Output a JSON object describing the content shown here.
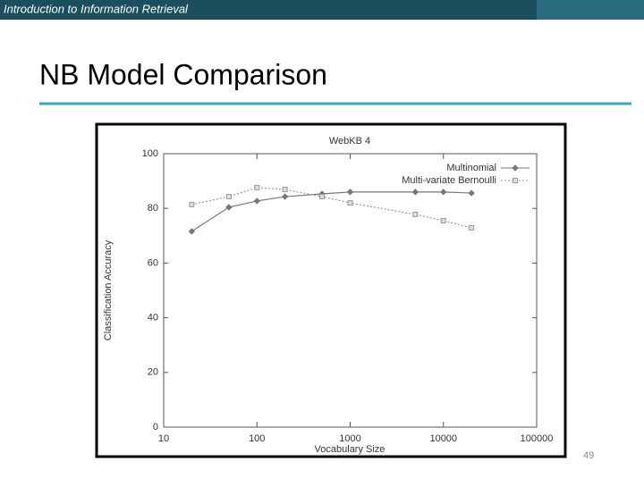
{
  "header": "Introduction to Information Retrieval",
  "title": "NB Model Comparison",
  "page_number": "49",
  "chart_data": {
    "type": "line",
    "title": "WebKB 4",
    "xlabel": "Vocabulary Size",
    "ylabel": "Classification Accuracy",
    "x": [
      20,
      50,
      100,
      200,
      500,
      1000,
      5000,
      10000,
      20000
    ],
    "series": [
      {
        "name": "Multinomial",
        "color": "#777777",
        "marker": "diamond",
        "values": [
          71.6,
          80.4,
          82.7,
          84.3,
          85.3,
          86,
          86,
          86,
          85.6
        ]
      },
      {
        "name": "Multi-variate Bernoulli",
        "color": "#999999",
        "marker": "square",
        "values": [
          81.4,
          84.3,
          87.6,
          86.9,
          84.3,
          82,
          77.8,
          75.5,
          72.9
        ]
      }
    ],
    "xscale": "log",
    "xlim": [
      10,
      100000
    ],
    "xticks": [
      10,
      100,
      1000,
      10000,
      100000
    ],
    "ylim": [
      0,
      100
    ],
    "yticks": [
      0,
      20,
      40,
      60,
      80,
      100
    ],
    "legend": "upper right"
  }
}
